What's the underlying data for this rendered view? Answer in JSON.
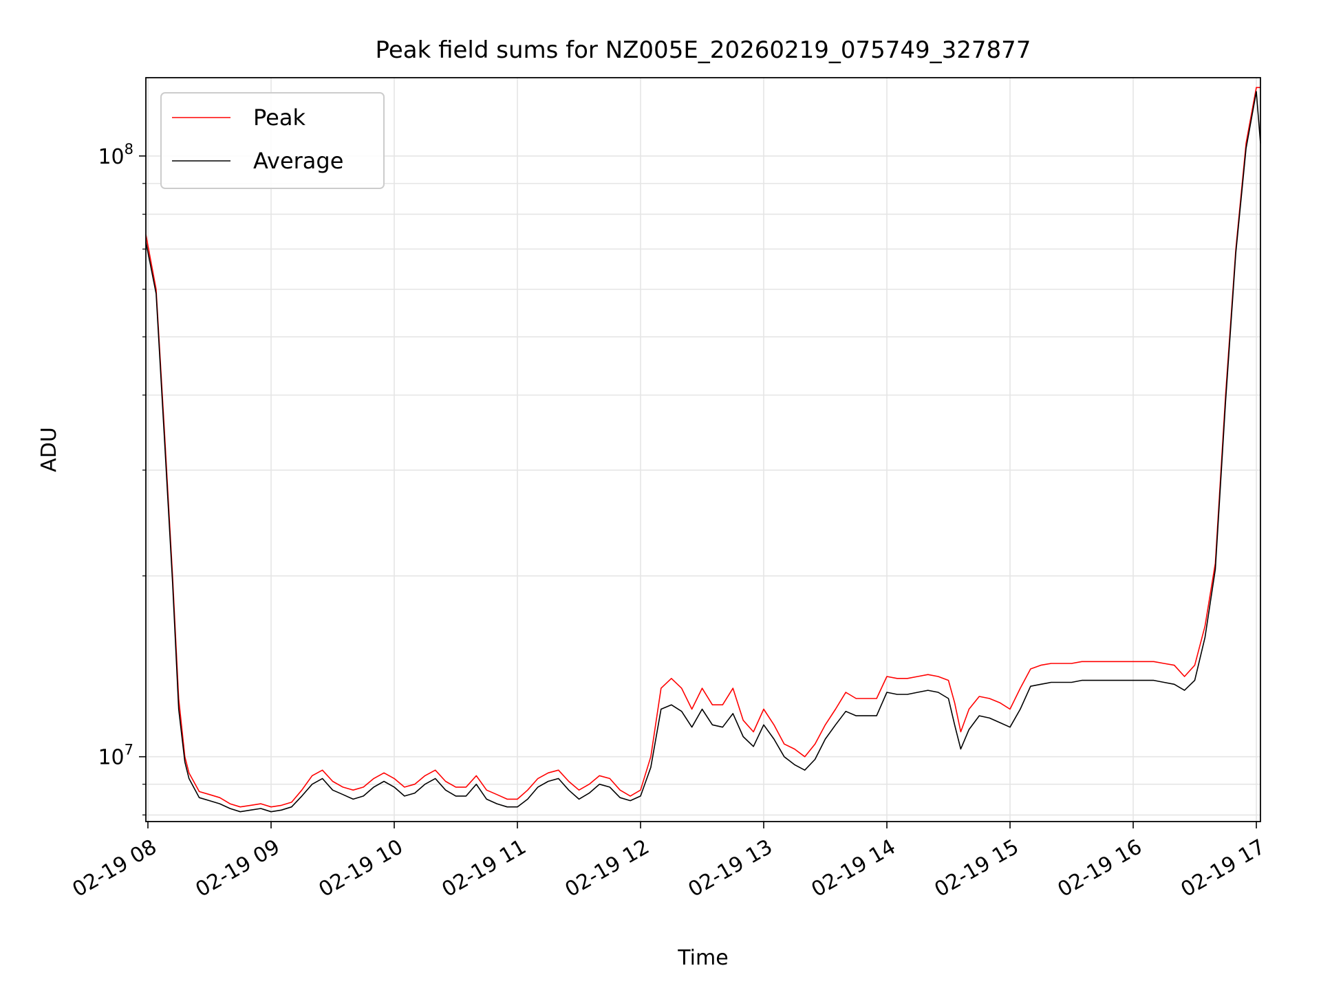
{
  "chart_data": {
    "type": "line",
    "title": "Peak field sums for NZ005E_20260219_075749_327877",
    "xlabel": "Time",
    "ylabel": "ADU",
    "yscale": "log",
    "ylim": [
      7800000,
      135000000
    ],
    "xlim": [
      "2026-02-19 07:59",
      "2026-02-19 17:02"
    ],
    "x_ticks": [
      "2026-02-19 08:00",
      "2026-02-19 09:00",
      "2026-02-19 10:00",
      "2026-02-19 11:00",
      "2026-02-19 12:00",
      "2026-02-19 13:00",
      "2026-02-19 14:00",
      "2026-02-19 15:00",
      "2026-02-19 16:00",
      "2026-02-19 17:00"
    ],
    "x_tick_labels": [
      "02-19 08",
      "02-19 09",
      "02-19 10",
      "02-19 11",
      "02-19 12",
      "02-19 13",
      "02-19 14",
      "02-19 15",
      "02-19 16",
      "02-19 17"
    ],
    "y_tick_labels": [
      {
        "value": 10000000,
        "base": "10",
        "exp": "7"
      },
      {
        "value": 100000000,
        "base": "10",
        "exp": "8"
      }
    ],
    "grid": true,
    "legend_position": "top-left",
    "x": [
      "2026-02-19 07:59",
      "2026-02-19 08:04",
      "2026-02-19 08:08",
      "2026-02-19 08:12",
      "2026-02-19 08:15",
      "2026-02-19 08:18",
      "2026-02-19 08:20",
      "2026-02-19 08:25",
      "2026-02-19 08:30",
      "2026-02-19 08:35",
      "2026-02-19 08:40",
      "2026-02-19 08:45",
      "2026-02-19 08:50",
      "2026-02-19 08:55",
      "2026-02-19 09:00",
      "2026-02-19 09:05",
      "2026-02-19 09:10",
      "2026-02-19 09:15",
      "2026-02-19 09:20",
      "2026-02-19 09:25",
      "2026-02-19 09:30",
      "2026-02-19 09:35",
      "2026-02-19 09:40",
      "2026-02-19 09:45",
      "2026-02-19 09:50",
      "2026-02-19 09:55",
      "2026-02-19 10:00",
      "2026-02-19 10:05",
      "2026-02-19 10:10",
      "2026-02-19 10:15",
      "2026-02-19 10:20",
      "2026-02-19 10:25",
      "2026-02-19 10:30",
      "2026-02-19 10:35",
      "2026-02-19 10:40",
      "2026-02-19 10:45",
      "2026-02-19 10:50",
      "2026-02-19 10:55",
      "2026-02-19 11:00",
      "2026-02-19 11:05",
      "2026-02-19 11:10",
      "2026-02-19 11:15",
      "2026-02-19 11:20",
      "2026-02-19 11:25",
      "2026-02-19 11:30",
      "2026-02-19 11:35",
      "2026-02-19 11:40",
      "2026-02-19 11:45",
      "2026-02-19 11:50",
      "2026-02-19 11:55",
      "2026-02-19 12:00",
      "2026-02-19 12:05",
      "2026-02-19 12:10",
      "2026-02-19 12:15",
      "2026-02-19 12:20",
      "2026-02-19 12:25",
      "2026-02-19 12:30",
      "2026-02-19 12:35",
      "2026-02-19 12:40",
      "2026-02-19 12:45",
      "2026-02-19 12:50",
      "2026-02-19 12:55",
      "2026-02-19 13:00",
      "2026-02-19 13:05",
      "2026-02-19 13:10",
      "2026-02-19 13:15",
      "2026-02-19 13:20",
      "2026-02-19 13:25",
      "2026-02-19 13:30",
      "2026-02-19 13:35",
      "2026-02-19 13:40",
      "2026-02-19 13:45",
      "2026-02-19 13:50",
      "2026-02-19 13:55",
      "2026-02-19 14:00",
      "2026-02-19 14:05",
      "2026-02-19 14:10",
      "2026-02-19 14:15",
      "2026-02-19 14:20",
      "2026-02-19 14:25",
      "2026-02-19 14:30",
      "2026-02-19 14:33",
      "2026-02-19 14:36",
      "2026-02-19 14:40",
      "2026-02-19 14:45",
      "2026-02-19 14:50",
      "2026-02-19 14:55",
      "2026-02-19 15:00",
      "2026-02-19 15:05",
      "2026-02-19 15:10",
      "2026-02-19 15:15",
      "2026-02-19 15:20",
      "2026-02-19 15:25",
      "2026-02-19 15:30",
      "2026-02-19 15:35",
      "2026-02-19 15:40",
      "2026-02-19 15:45",
      "2026-02-19 15:50",
      "2026-02-19 15:55",
      "2026-02-19 16:00",
      "2026-02-19 16:05",
      "2026-02-19 16:10",
      "2026-02-19 16:15",
      "2026-02-19 16:20",
      "2026-02-19 16:25",
      "2026-02-19 16:30",
      "2026-02-19 16:35",
      "2026-02-19 16:40",
      "2026-02-19 16:45",
      "2026-02-19 16:50",
      "2026-02-19 16:55",
      "2026-02-19 17:00",
      "2026-02-19 17:02"
    ],
    "series": [
      {
        "name": "Peak",
        "color": "#ff0000",
        "values": [
          74000000,
          60000000,
          35000000,
          20000000,
          12500000,
          10000000,
          9400000,
          8750000,
          8650000,
          8550000,
          8350000,
          8250000,
          8300000,
          8350000,
          8250000,
          8300000,
          8400000,
          8800000,
          9300000,
          9500000,
          9100000,
          8900000,
          8800000,
          8900000,
          9200000,
          9400000,
          9200000,
          8900000,
          9000000,
          9300000,
          9500000,
          9100000,
          8900000,
          8900000,
          9300000,
          8800000,
          8650000,
          8500000,
          8500000,
          8800000,
          9200000,
          9400000,
          9500000,
          9100000,
          8800000,
          9000000,
          9300000,
          9200000,
          8800000,
          8600000,
          8800000,
          10000000,
          13000000,
          13500000,
          13000000,
          12000000,
          13000000,
          12200000,
          12200000,
          13000000,
          11500000,
          11000000,
          12000000,
          11300000,
          10500000,
          10300000,
          10000000,
          10500000,
          11300000,
          12000000,
          12800000,
          12500000,
          12500000,
          12500000,
          13600000,
          13500000,
          13500000,
          13600000,
          13700000,
          13600000,
          13400000,
          12300000,
          11000000,
          12000000,
          12600000,
          12500000,
          12300000,
          12000000,
          13000000,
          14000000,
          14200000,
          14300000,
          14300000,
          14300000,
          14400000,
          14400000,
          14400000,
          14400000,
          14400000,
          14400000,
          14400000,
          14400000,
          14300000,
          14200000,
          13600000,
          14200000,
          16500000,
          21000000,
          40000000,
          70000000,
          105000000,
          130000000,
          130000000
        ]
      },
      {
        "name": "Average",
        "color": "#000000",
        "values": [
          72000000,
          59000000,
          34000000,
          19500000,
          12000000,
          9800000,
          9200000,
          8550000,
          8450000,
          8350000,
          8200000,
          8100000,
          8150000,
          8200000,
          8100000,
          8150000,
          8250000,
          8600000,
          9000000,
          9200000,
          8800000,
          8650000,
          8500000,
          8600000,
          8900000,
          9100000,
          8900000,
          8600000,
          8700000,
          9000000,
          9200000,
          8800000,
          8600000,
          8600000,
          9000000,
          8500000,
          8350000,
          8250000,
          8250000,
          8500000,
          8900000,
          9100000,
          9200000,
          8800000,
          8500000,
          8700000,
          9000000,
          8900000,
          8550000,
          8450000,
          8600000,
          9600000,
          12000000,
          12200000,
          11900000,
          11200000,
          12000000,
          11300000,
          11200000,
          11800000,
          10800000,
          10400000,
          11300000,
          10700000,
          10000000,
          9700000,
          9500000,
          9900000,
          10700000,
          11300000,
          11900000,
          11700000,
          11700000,
          11700000,
          12800000,
          12700000,
          12700000,
          12800000,
          12900000,
          12800000,
          12500000,
          11300000,
          10300000,
          11100000,
          11700000,
          11600000,
          11400000,
          11200000,
          12000000,
          13100000,
          13200000,
          13300000,
          13300000,
          13300000,
          13400000,
          13400000,
          13400000,
          13400000,
          13400000,
          13400000,
          13400000,
          13400000,
          13300000,
          13200000,
          12900000,
          13400000,
          15800000,
          20500000,
          39000000,
          69000000,
          103000000,
          128000000,
          105000000
        ]
      }
    ]
  }
}
